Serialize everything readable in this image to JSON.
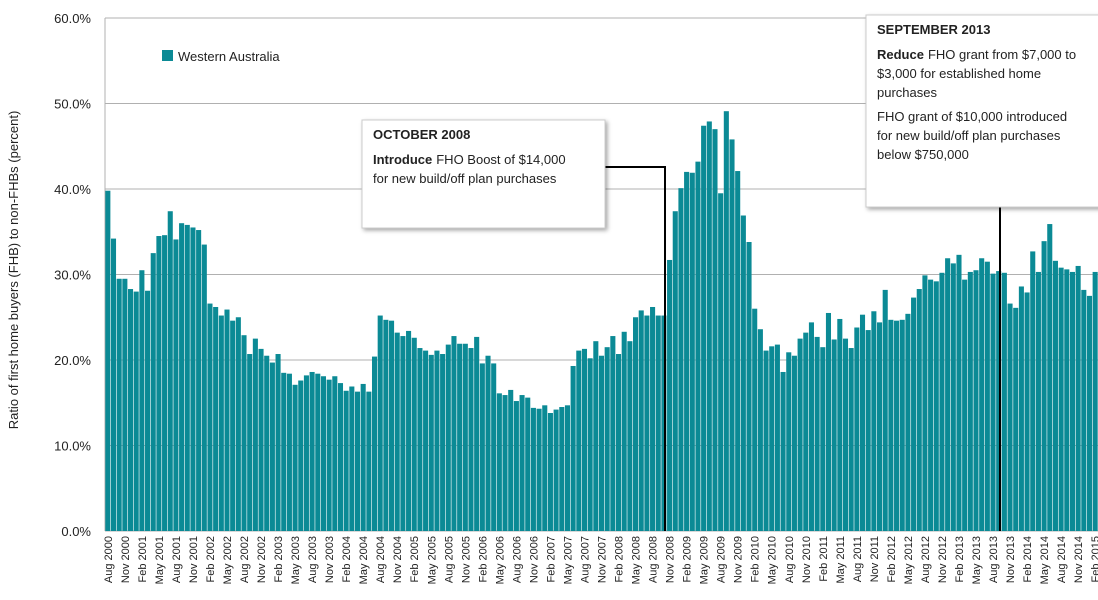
{
  "chart_data": {
    "type": "bar",
    "y_label": "Ratio  of first home buyers (FHB) to non-FHBs (percent)",
    "legend": {
      "position": "upper left"
    },
    "series": [
      {
        "name": "Western Australia",
        "color": "#0b8a95",
        "values": [
          39.8,
          34.2,
          29.5,
          29.5,
          28.3,
          28.0,
          30.5,
          28.1,
          32.5,
          34.5,
          34.6,
          37.4,
          34.1,
          36.0,
          35.8,
          35.5,
          35.2,
          33.5,
          26.6,
          26.2,
          25.2,
          25.9,
          24.6,
          25.0,
          22.9,
          20.7,
          22.5,
          21.3,
          20.5,
          19.7,
          20.7,
          18.5,
          18.4,
          17.1,
          17.6,
          18.2,
          18.6,
          18.4,
          18.1,
          17.7,
          18.1,
          17.3,
          16.4,
          16.9,
          16.3,
          17.2,
          16.3,
          20.4,
          25.2,
          24.7,
          24.6,
          23.2,
          22.8,
          23.4,
          22.6,
          21.4,
          21.1,
          20.6,
          21.1,
          20.7,
          21.8,
          22.8,
          21.9,
          21.9,
          21.4,
          22.7,
          19.6,
          20.5,
          19.6,
          16.1,
          15.9,
          16.5,
          15.2,
          15.9,
          15.6,
          14.4,
          14.3,
          14.7,
          13.8,
          14.2,
          14.5,
          14.7,
          19.3,
          21.1,
          21.3,
          20.2,
          22.2,
          20.5,
          21.5,
          22.8,
          20.7,
          23.3,
          22.2,
          25.0,
          25.8,
          25.2,
          26.2,
          25.2,
          25.2,
          31.7,
          37.4,
          40.1,
          42.0,
          41.9,
          43.2,
          47.4,
          47.9,
          47.0,
          39.5,
          49.1,
          45.8,
          42.1,
          36.9,
          33.8,
          26.0,
          23.6,
          21.1,
          21.6,
          21.8,
          18.6,
          20.9,
          20.5,
          22.5,
          23.2,
          24.4,
          22.7,
          21.5,
          25.5,
          22.4,
          24.8,
          22.5,
          21.4,
          23.8,
          25.3,
          23.5,
          25.7,
          24.4,
          28.2,
          24.7,
          24.6,
          24.7,
          25.4,
          27.3,
          28.3,
          29.9,
          29.4,
          29.2,
          30.2,
          31.9,
          31.3,
          32.3,
          29.4,
          30.3,
          30.5,
          31.9,
          31.5,
          30.1,
          30.4,
          30.2,
          26.6,
          26.1,
          28.6,
          27.9,
          32.7,
          30.3,
          33.9,
          35.9,
          31.6,
          30.8,
          30.6,
          30.3,
          31.0,
          28.2,
          27.5,
          30.3
        ]
      }
    ],
    "categories": [
      "Aug 2000",
      null,
      null,
      "Nov 2000",
      null,
      null,
      "Feb 2001",
      null,
      null,
      "May 2001",
      null,
      null,
      "Aug 2001",
      null,
      null,
      "Nov 2001",
      null,
      null,
      "Feb 2002",
      null,
      null,
      "May 2002",
      null,
      null,
      "Aug 2002",
      null,
      null,
      "Nov 2002",
      null,
      null,
      "Feb 2003",
      null,
      null,
      "May 2003",
      null,
      null,
      "Aug 2003",
      null,
      null,
      "Nov 2003",
      null,
      null,
      "Feb 2004",
      null,
      null,
      "May 2004",
      null,
      null,
      "Aug 2004",
      null,
      null,
      "Nov 2004",
      null,
      null,
      "Feb 2005",
      null,
      null,
      "May 2005",
      null,
      null,
      "Aug 2005",
      null,
      null,
      "Nov 2005",
      null,
      null,
      "Feb 2006",
      null,
      null,
      "May 2006",
      null,
      null,
      "Aug 2006",
      null,
      null,
      "Nov 2006",
      null,
      null,
      "Feb 2007",
      null,
      null,
      "May 2007",
      null,
      null,
      "Aug 2007",
      null,
      null,
      "Nov 2007",
      null,
      null,
      "Feb 2008",
      null,
      null,
      "May 2008",
      null,
      null,
      "Aug 2008",
      null,
      null,
      "Nov 2008",
      null,
      null,
      "Feb 2009",
      null,
      null,
      "May 2009",
      null,
      null,
      "Aug 2009",
      null,
      null,
      "Nov 2009",
      null,
      null,
      "Feb 2010",
      null,
      null,
      "May 2010",
      null,
      null,
      "Aug 2010",
      null,
      null,
      "Nov 2010",
      null,
      null,
      "Feb 2011",
      null,
      null,
      "May 2011",
      null,
      null,
      "Aug 2011",
      null,
      null,
      "Nov 2011",
      null,
      null,
      "Feb 2012",
      null,
      null,
      "May 2012",
      null,
      null,
      "Aug 2012",
      null,
      null,
      "Nov 2012",
      null,
      null,
      "Feb 2013",
      null,
      null,
      "May 2013",
      null,
      null,
      "Aug 2013",
      null,
      null,
      "Nov 2013",
      null,
      null,
      "Feb 2014",
      null,
      null,
      "May 2014",
      null,
      null,
      "Aug 2014",
      null,
      null,
      "Nov 2014",
      null,
      null,
      "Feb 2015"
    ],
    "ylim": [
      0,
      60
    ],
    "yticks": [
      {
        "value": 0,
        "label": "0.0%"
      },
      {
        "value": 10,
        "label": "10.0%"
      },
      {
        "value": 20,
        "label": "20.0%"
      },
      {
        "value": 30,
        "label": "30.0%"
      },
      {
        "value": 40,
        "label": "40.0%"
      },
      {
        "value": 50,
        "label": "50.0%"
      },
      {
        "value": 60,
        "label": "60.0%"
      }
    ],
    "grid": true,
    "annotations": [
      {
        "title": "OCTOBER 2008",
        "paragraphs": [
          {
            "bold": "Introduce",
            "lines": [
              "FHO Boost of $14,000",
              "for new build/off plan purchases"
            ]
          }
        ]
      },
      {
        "title": "SEPTEMBER 2013",
        "paragraphs": [
          {
            "bold": "Reduce",
            "lines": [
              "FHO grant from $7,000 to",
              "$3,000 for established home",
              "purchases"
            ]
          },
          {
            "lines": [
              "FHO grant of $10,000 introduced",
              "for new build/off plan purchases",
              "below $750,000"
            ]
          }
        ]
      }
    ]
  }
}
